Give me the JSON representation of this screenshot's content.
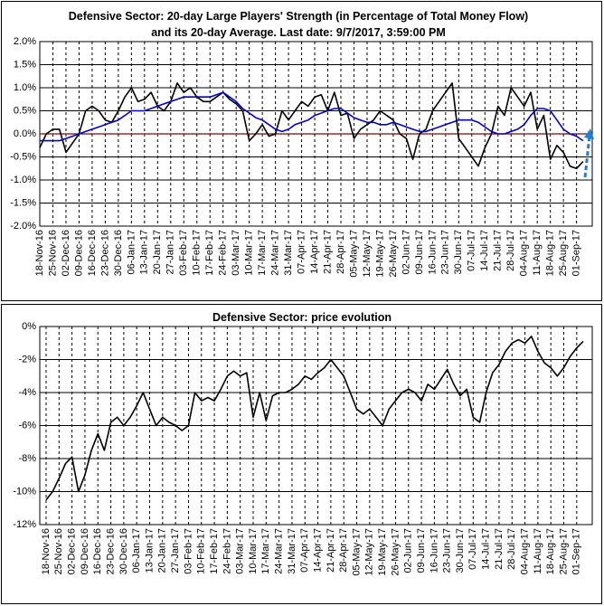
{
  "chart_data": [
    {
      "type": "line",
      "title": "Defensive Sector: 20-day Large Players' Strength (in Percentage of Total Money Flow) and its 20-day Average. Last date: 9/7/2017, 3:59:00 PM",
      "categories": [
        "18-Nov-16",
        null,
        "25-Nov-16",
        null,
        "02-Dec-16",
        null,
        "09-Dec-16",
        null,
        "16-Dec-16",
        null,
        "23-Dec-16",
        null,
        "30-Dec-16",
        null,
        "06-Jan-17",
        null,
        "13-Jan-17",
        null,
        "20-Jan-17",
        null,
        "27-Jan-17",
        null,
        "03-Feb-17",
        null,
        "10-Feb-17",
        null,
        "17-Feb-17",
        null,
        "24-Feb-17",
        null,
        "03-Mar-17",
        null,
        "10-Mar-17",
        null,
        "17-Mar-17",
        null,
        "24-Mar-17",
        null,
        "31-Mar-17",
        null,
        "07-Apr-17",
        null,
        "14-Apr-17",
        null,
        "21-Apr-17",
        null,
        "28-Apr-17",
        null,
        "05-May-17",
        null,
        "12-May-17",
        null,
        "19-May-17",
        null,
        "26-May-17",
        null,
        "02-Jun-17",
        null,
        "09-Jun-17",
        null,
        "16-Jun-17",
        null,
        "23-Jun-17",
        null,
        "30-Jun-17",
        null,
        "07-Jul-17",
        null,
        "14-Jul-17",
        null,
        "21-Jul-17",
        null,
        "28-Jul-17",
        null,
        "04-Aug-17",
        null,
        "11-Aug-17",
        null,
        "18-Aug-17",
        null,
        "25-Aug-17",
        null,
        "01-Sep-17",
        null
      ],
      "series": [
        {
          "color": "#000000",
          "values": [
            -0.3,
            0.0,
            0.1,
            0.1,
            -0.4,
            -0.2,
            0.0,
            0.5,
            0.6,
            0.5,
            0.3,
            0.25,
            0.5,
            0.8,
            1.0,
            0.7,
            0.75,
            0.9,
            0.6,
            0.5,
            0.7,
            1.1,
            0.9,
            1.0,
            0.8,
            0.7,
            0.7,
            0.8,
            0.9,
            0.75,
            0.65,
            0.5,
            -0.15,
            0.0,
            0.2,
            -0.05,
            0.0,
            0.5,
            0.3,
            0.5,
            0.7,
            0.6,
            0.8,
            0.85,
            0.5,
            0.9,
            0.4,
            0.45,
            -0.1,
            0.1,
            0.2,
            0.3,
            0.5,
            0.4,
            0.3,
            0.0,
            -0.1,
            -0.55,
            0.0,
            0.1,
            0.5,
            0.7,
            0.9,
            1.1,
            -0.1,
            -0.3,
            -0.5,
            -0.7,
            -0.3,
            0.0,
            0.6,
            0.4,
            1.0,
            0.8,
            0.6,
            0.9,
            0.1,
            0.4,
            -0.55,
            -0.25,
            -0.4,
            -0.7,
            -0.75,
            -0.6
          ]
        },
        {
          "color": "#0000cc",
          "values": [
            -0.15,
            -0.15,
            -0.15,
            -0.15,
            -0.1,
            -0.05,
            0.0,
            0.05,
            0.1,
            0.15,
            0.2,
            0.25,
            0.3,
            0.4,
            0.5,
            0.5,
            0.5,
            0.55,
            0.6,
            0.65,
            0.7,
            0.75,
            0.8,
            0.8,
            0.8,
            0.8,
            0.8,
            0.85,
            0.9,
            0.8,
            0.7,
            0.55,
            0.45,
            0.35,
            0.3,
            0.2,
            0.1,
            0.05,
            0.1,
            0.2,
            0.25,
            0.3,
            0.4,
            0.45,
            0.5,
            0.55,
            0.55,
            0.45,
            0.35,
            0.3,
            0.25,
            0.25,
            0.2,
            0.2,
            0.25,
            0.2,
            0.15,
            0.1,
            0.05,
            0.05,
            0.1,
            0.15,
            0.2,
            0.25,
            0.3,
            0.3,
            0.3,
            0.25,
            0.15,
            0.05,
            0.0,
            0.0,
            0.05,
            0.1,
            0.2,
            0.4,
            0.55,
            0.55,
            0.5,
            0.3,
            0.1,
            0.0,
            -0.05,
            -0.15
          ]
        }
      ],
      "ylim": [
        -2.0,
        2.0
      ],
      "yticks": [
        {
          "value": -2.0,
          "label": "-2.0%"
        },
        {
          "value": -1.5,
          "label": "-1.5%"
        },
        {
          "value": -1.0,
          "label": "-1.0%"
        },
        {
          "value": -0.5,
          "label": "-0.5%"
        },
        {
          "value": 0.0,
          "label": "0.0%"
        },
        {
          "value": 0.5,
          "label": "0.5%"
        },
        {
          "value": 1.0,
          "label": "1.0%"
        },
        {
          "value": 1.5,
          "label": "1.5%"
        },
        {
          "value": 2.0,
          "label": "2.0%"
        }
      ],
      "grid": true
    },
    {
      "type": "line",
      "title": "Defensive Sector: price evolution",
      "categories": [
        "18-Nov-16",
        null,
        "25-Nov-16",
        null,
        "02-Dec-16",
        null,
        "09-Dec-16",
        null,
        "16-Dec-16",
        null,
        "23-Dec-16",
        null,
        "30-Dec-16",
        null,
        "06-Jan-17",
        null,
        "13-Jan-17",
        null,
        "20-Jan-17",
        null,
        "27-Jan-17",
        null,
        "03-Feb-17",
        null,
        "10-Feb-17",
        null,
        "17-Feb-17",
        null,
        "24-Feb-17",
        null,
        "03-Mar-17",
        null,
        "10-Mar-17",
        null,
        "17-Mar-17",
        null,
        "24-Mar-17",
        null,
        "31-Mar-17",
        null,
        "07-Apr-17",
        null,
        "14-Apr-17",
        null,
        "21-Apr-17",
        null,
        "28-Apr-17",
        null,
        "05-May-17",
        null,
        "12-May-17",
        null,
        "19-May-17",
        null,
        "26-May-17",
        null,
        "02-Jun-17",
        null,
        "09-Jun-17",
        null,
        "16-Jun-17",
        null,
        "23-Jun-17",
        null,
        "30-Jun-17",
        null,
        "07-Jul-17",
        null,
        "14-Jul-17",
        null,
        "21-Jul-17",
        null,
        "28-Jul-17",
        null,
        "04-Aug-17",
        null,
        "11-Aug-17",
        null,
        "18-Aug-17",
        null,
        "25-Aug-17",
        null,
        "01-Sep-17",
        null
      ],
      "series": [
        {
          "color": "#000000",
          "values": [
            -10.5,
            -10.0,
            -9.2,
            -8.3,
            -7.9,
            -10.0,
            -9.0,
            -7.5,
            -6.5,
            -7.5,
            -5.8,
            -5.5,
            -6.0,
            -5.5,
            -4.8,
            -4.0,
            -5.0,
            -6.0,
            -5.5,
            -5.8,
            -6.0,
            -6.3,
            -6.0,
            -4.0,
            -4.5,
            -4.3,
            -4.5,
            -3.8,
            -3.0,
            -2.7,
            -3.0,
            -2.8,
            -5.5,
            -4.0,
            -5.7,
            -4.2,
            -4.0,
            -4.0,
            -3.8,
            -3.5,
            -3.0,
            -3.2,
            -2.8,
            -2.5,
            -2.0,
            -2.5,
            -3.0,
            -4.0,
            -5.0,
            -5.3,
            -5.0,
            -5.5,
            -6.0,
            -5.0,
            -4.5,
            -4.0,
            -3.8,
            -4.0,
            -4.5,
            -3.5,
            -3.8,
            -3.2,
            -2.6,
            -3.5,
            -4.2,
            -3.8,
            -5.5,
            -5.8,
            -4.0,
            -2.8,
            -2.3,
            -1.5,
            -1.0,
            -0.8,
            -1.0,
            -0.6,
            -1.5,
            -2.2,
            -2.5,
            -3.0,
            -2.5,
            -1.8,
            -1.3,
            -0.9
          ]
        }
      ],
      "ylim": [
        -12,
        0
      ],
      "yticks": [
        {
          "value": -12,
          "label": "-12%"
        },
        {
          "value": -10,
          "label": "-10%"
        },
        {
          "value": -8,
          "label": "-8%"
        },
        {
          "value": -6,
          "label": "-6%"
        },
        {
          "value": -4,
          "label": "-4%"
        },
        {
          "value": -2,
          "label": "-2%"
        },
        {
          "value": 0,
          "label": "0%"
        }
      ],
      "grid": true
    }
  ]
}
